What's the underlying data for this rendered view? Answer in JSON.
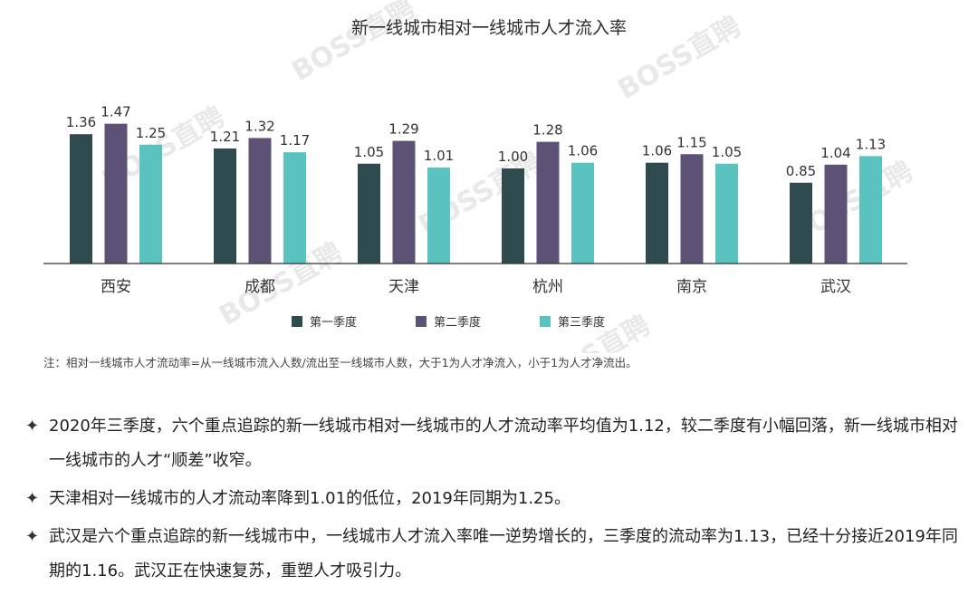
{
  "chart_data": {
    "type": "bar",
    "title": "新一线城市相对一线城市人才流入率",
    "categories": [
      "西安",
      "成都",
      "天津",
      "杭州",
      "南京",
      "武汉"
    ],
    "series": [
      {
        "name": "第一季度",
        "color": "#2f4b4d",
        "values": [
          "1.36",
          "1.21",
          "1.05",
          "1.00",
          "1.06",
          "0.85"
        ]
      },
      {
        "name": "第二季度",
        "color": "#5d5275",
        "values": [
          "1.47",
          "1.32",
          "1.29",
          "1.28",
          "1.15",
          "1.04"
        ]
      },
      {
        "name": "第三季度",
        "color": "#5bc3bf",
        "values": [
          "1.25",
          "1.17",
          "1.01",
          "1.06",
          "1.05",
          "1.13"
        ]
      }
    ],
    "xlabel": "",
    "ylabel": "",
    "ylim": [
      0,
      1.5
    ],
    "grid": false,
    "legend": "bottom"
  },
  "watermark": "BOSS直聘",
  "note": "注：相对一线城市人才流动率=从一线城市流入人数/流出至一线城市人数，大于1为人才净流入，小于1为人才净流出。",
  "bullets": [
    {
      "mark": "✦",
      "text": "2020年三季度，六个重点追踪的新一线城市相对一线城市的人才流动率平均值为1.12，较二季度有小幅回落，新一线城市相对一线城市的人才“顺差”收窄。"
    },
    {
      "mark": "✦",
      "text": "天津相对一线城市的人才流动率降到1.01的低位，2019年同期为1.25。"
    },
    {
      "mark": "✦",
      "text": "武汉是六个重点追踪的新一线城市中，一线城市人才流入率唯一逆势增长的，三季度的流动率为1.13，已经十分接近2019年同期的1.16。武汉正在快速复苏，重塑人才吸引力。"
    }
  ]
}
